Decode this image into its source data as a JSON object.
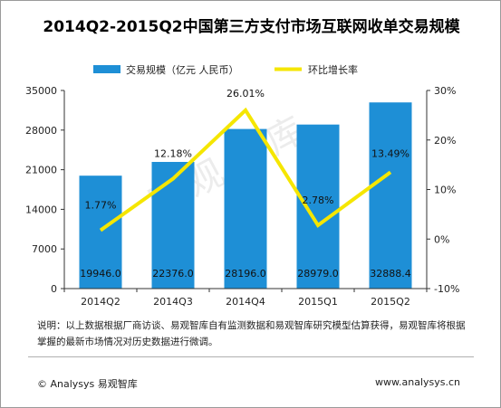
{
  "title": "2014Q2-2015Q2中国第三方支付市场互联网收单交易规模",
  "watermark": "易观智库",
  "note": "说明：以上数据根据厂商访谈、易观智库自有监测数据和易观智库研究模型估算获得，易观智库将根据掌握的最新市场情况对历史数据进行微调。",
  "copyright": "© Analysys 易观智库",
  "website": "www.analysys.cn",
  "colors": {
    "bar": "#1e8fd6",
    "line": "#f5e600",
    "axis": "#333333"
  },
  "chart_data": {
    "type": "bar",
    "categories": [
      "2014Q2",
      "2014Q3",
      "2014Q4",
      "2015Q1",
      "2015Q2"
    ],
    "series": [
      {
        "name": "交易规模（亿元 人民币）",
        "type": "bar",
        "axis": "left",
        "values": [
          19946.0,
          22376.0,
          28196.0,
          28979.0,
          32888.4
        ],
        "labels": [
          "19946.0",
          "22376.0",
          "28196.0",
          "28979.0",
          "32888.4"
        ]
      },
      {
        "name": "环比增长率",
        "type": "line",
        "axis": "right",
        "values": [
          1.77,
          12.18,
          26.01,
          2.78,
          13.49
        ],
        "labels": [
          "1.77%",
          "12.18%",
          "26.01%",
          "2.78%",
          "13.49%"
        ]
      }
    ],
    "y_left": {
      "ylim": [
        0,
        35000
      ],
      "ticks": [
        "0",
        "7000",
        "14000",
        "21000",
        "28000",
        "35000"
      ],
      "tick_values": [
        0,
        7000,
        14000,
        21000,
        28000,
        35000
      ]
    },
    "y_right": {
      "ylim": [
        -10,
        30
      ],
      "ticks": [
        "-10%",
        "0%",
        "10%",
        "20%",
        "30%"
      ],
      "tick_values": [
        -10,
        0,
        10,
        20,
        30
      ]
    },
    "legend_position": "top"
  }
}
